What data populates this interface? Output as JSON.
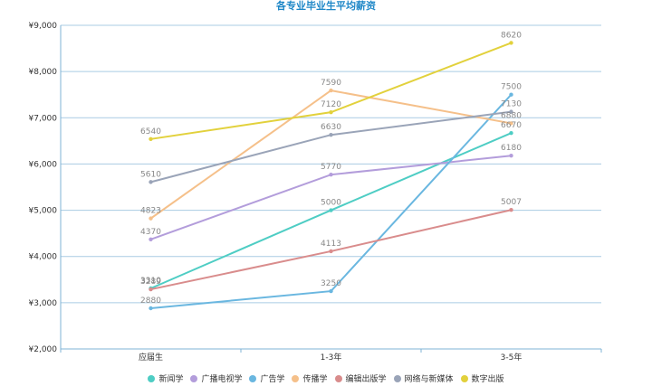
{
  "chart_data": {
    "type": "line",
    "title": "各专业毕业生平均薪资",
    "categories": [
      "应届生",
      "1-3年",
      "3-5年"
    ],
    "y_ticks": [
      "¥2,000",
      "¥3,000",
      "¥4,000",
      "¥5,000",
      "¥6,000",
      "¥7,000",
      "¥8,000",
      "¥9,000"
    ],
    "ylim": [
      2000,
      9000
    ],
    "grid": true,
    "legend_position": "bottom",
    "series": [
      {
        "name": "新闻学",
        "color": "#4ecdc4",
        "values": [
          3310,
          5000,
          6670
        ]
      },
      {
        "name": "广播电视学",
        "color": "#b39ddb",
        "values": [
          4370,
          5770,
          6180
        ]
      },
      {
        "name": "广告学",
        "color": "#6ab7e0",
        "values": [
          2880,
          3250,
          7500
        ]
      },
      {
        "name": "传播学",
        "color": "#f5c08a",
        "values": [
          4823,
          7590,
          6880
        ]
      },
      {
        "name": "编辑出版学",
        "color": "#d98c8c",
        "values": [
          3289,
          4113,
          5007
        ]
      },
      {
        "name": "网络与新媒体",
        "color": "#9aa4b8",
        "values": [
          5610,
          6630,
          7130
        ]
      },
      {
        "name": "数字出版",
        "color": "#e2d13c",
        "values": [
          6540,
          7120,
          8620
        ]
      }
    ]
  }
}
